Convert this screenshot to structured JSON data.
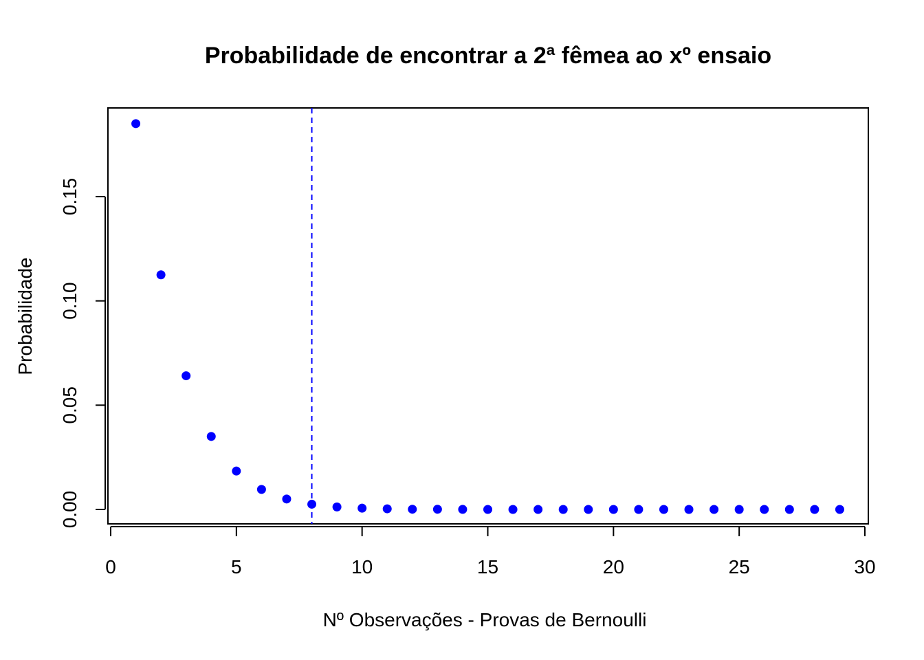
{
  "chart_data": {
    "type": "scatter",
    "title": "Probabilidade de encontrar a 2ª fêmea ao xº ensaio",
    "xlabel": "Nº Observações - Provas de Bernoulli",
    "ylabel": "Probabilidade",
    "xlim": [
      0,
      30
    ],
    "ylim": [
      0,
      0.185
    ],
    "x_ticks": [
      0,
      5,
      10,
      15,
      20,
      25,
      30
    ],
    "x_tick_labels": [
      "0",
      "5",
      "10",
      "15",
      "20",
      "25",
      "30"
    ],
    "y_ticks": [
      0.0,
      0.05,
      0.1,
      0.15
    ],
    "y_tick_labels": [
      "0.00",
      "0.05",
      "0.10",
      "0.15"
    ],
    "grid": false,
    "legend": "none",
    "point_color": "#0000FF",
    "vline": {
      "x": 8,
      "style": "dashed",
      "color": "#0000FF"
    },
    "series": [
      {
        "x": [
          1,
          2,
          3,
          4,
          5,
          6,
          7,
          8,
          9,
          10,
          11,
          12,
          13,
          14,
          15,
          16,
          17,
          18,
          19,
          20,
          21,
          22,
          23,
          24,
          25,
          26,
          27,
          28,
          29
        ],
        "y": [
          0.185,
          0.1125,
          0.0641,
          0.035,
          0.0184,
          0.0096,
          0.005,
          0.0025,
          0.0012,
          0.0006,
          0.0003,
          0.0001,
          0.0001,
          3e-05,
          1e-05,
          1e-05,
          0.0,
          0.0,
          0.0,
          0.0,
          0.0,
          0.0,
          0.0,
          0.0,
          0.0,
          0.0,
          0.0,
          0.0,
          0.0
        ]
      }
    ]
  }
}
